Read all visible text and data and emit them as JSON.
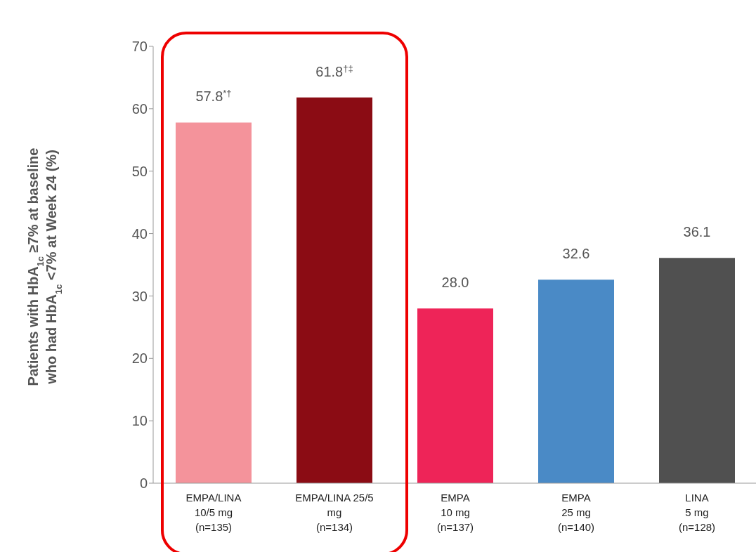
{
  "chart_data": {
    "type": "bar",
    "ylabel": "Patients with HbA$_{1c}$ ≥7% at baseline\nwho had HbA$_{1c}$ <7% at Week 24 (%)",
    "categories": [
      "EMPA/LINA\n10/5 mg\n(n=135)",
      "EMPA/LINA 25/5\nmg\n(n=134)",
      "EMPA\n10 mg\n(n=137)",
      "EMPA\n25 mg\n(n=140)",
      "LINA\n5 mg\n(n=128)"
    ],
    "values": [
      57.8,
      61.8,
      28.0,
      32.6,
      36.1
    ],
    "value_labels": [
      "57.8$^{*†}$",
      "61.8$^{†‡}$",
      "28.0",
      "32.6",
      "36.1"
    ],
    "colors": [
      "#f4939b",
      "#8b0c14",
      "#ee2458",
      "#4a8ac6",
      "#505050"
    ],
    "ylim": [
      0,
      70
    ],
    "yticks": [
      0,
      10,
      20,
      30,
      40,
      50,
      60,
      70
    ],
    "grid": false,
    "legend": false
  }
}
